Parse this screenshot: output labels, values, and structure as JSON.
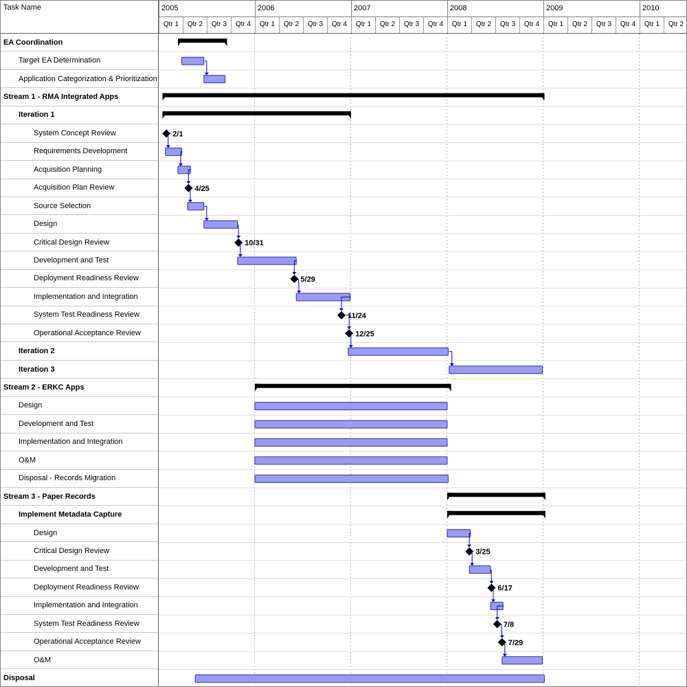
{
  "table": {
    "header": "Task Name"
  },
  "timeline": {
    "start_year": 2005,
    "years": [
      {
        "label": "2005",
        "quarters": [
          "Qtr 1",
          "Qtr 2",
          "Qtr 3",
          "Qtr 4"
        ]
      },
      {
        "label": "2006",
        "quarters": [
          "Qtr 1",
          "Qtr 2",
          "Qtr 3",
          "Qtr 4"
        ]
      },
      {
        "label": "2007",
        "quarters": [
          "Qtr 1",
          "Qtr 2",
          "Qtr 3",
          "Qtr 4"
        ]
      },
      {
        "label": "2008",
        "quarters": [
          "Qtr 1",
          "Qtr 2",
          "Qtr 3",
          "Qtr 4"
        ]
      },
      {
        "label": "2009",
        "quarters": [
          "Qtr 1",
          "Qtr 2",
          "Qtr 3",
          "Qtr 4"
        ]
      },
      {
        "label": "2010",
        "quarters": [
          "Qtr 1",
          "Qtr 2"
        ]
      }
    ]
  },
  "colors": {
    "bar_fill": "#9b9bf0",
    "bar_border": "#2e2eb8",
    "summary": "#000000",
    "milestone": "#000000",
    "link": "#0000cc",
    "grid": "#b4b4b4",
    "row_line": "#dcdcdc"
  },
  "chart_data": {
    "type": "gantt",
    "title": "Project schedule Gantt chart, 2005 Q1 - 2010 Q2",
    "time_axis": {
      "unit": "quarter",
      "range": [
        2005.0,
        2010.5
      ]
    },
    "tasks": [
      {
        "name": "EA Coordination",
        "level": 0,
        "bold": true,
        "type": "summary",
        "start": 2005.2,
        "end": 2005.71
      },
      {
        "name": "Target EA Determination",
        "level": 1,
        "bold": false,
        "type": "bar",
        "start": 2005.24,
        "end": 2005.47
      },
      {
        "name": "Application Categorization & Prioritization",
        "level": 1,
        "bold": false,
        "type": "bar",
        "start": 2005.47,
        "end": 2005.69
      },
      {
        "name": "Stream 1 - RMA Integrated Apps",
        "level": 0,
        "bold": true,
        "type": "summary",
        "start": 2005.04,
        "end": 2009.01
      },
      {
        "name": "Iteration 1",
        "level": 1,
        "bold": true,
        "type": "summary",
        "start": 2005.04,
        "end": 2007.0
      },
      {
        "name": "System Concept Review",
        "level": 2,
        "bold": false,
        "type": "milestone",
        "date": 2005.08,
        "date_label": "2/1"
      },
      {
        "name": "Requirements Development",
        "level": 2,
        "bold": false,
        "type": "bar",
        "start": 2005.07,
        "end": 2005.24
      },
      {
        "name": "Acquisition Planning",
        "level": 2,
        "bold": false,
        "type": "bar",
        "start": 2005.2,
        "end": 2005.33
      },
      {
        "name": "Acquisition Plan Review",
        "level": 2,
        "bold": false,
        "type": "milestone",
        "date": 2005.31,
        "date_label": "4/25"
      },
      {
        "name": "Source Selection",
        "level": 2,
        "bold": false,
        "type": "bar",
        "start": 2005.3,
        "end": 2005.47
      },
      {
        "name": "Design",
        "level": 2,
        "bold": false,
        "type": "bar",
        "start": 2005.47,
        "end": 2005.82
      },
      {
        "name": "Critical Design Review",
        "level": 2,
        "bold": false,
        "type": "milestone",
        "date": 2005.83,
        "date_label": "10/31"
      },
      {
        "name": "Development and Test",
        "level": 2,
        "bold": false,
        "type": "bar",
        "start": 2005.82,
        "end": 2006.43
      },
      {
        "name": "Deployment Readiness Review",
        "level": 2,
        "bold": false,
        "type": "milestone",
        "date": 2006.41,
        "date_label": "5/29"
      },
      {
        "name": "Implementation and Integration",
        "level": 2,
        "bold": false,
        "type": "bar",
        "start": 2006.43,
        "end": 2006.99
      },
      {
        "name": "System Test Readiness Review",
        "level": 2,
        "bold": false,
        "type": "milestone",
        "date": 2006.9,
        "date_label": "11/24"
      },
      {
        "name": "Operational Acceptance Review",
        "level": 2,
        "bold": false,
        "type": "milestone",
        "date": 2006.98,
        "date_label": "12/25"
      },
      {
        "name": "Iteration 2",
        "level": 1,
        "bold": true,
        "type": "bar",
        "start": 2006.97,
        "end": 2008.01
      },
      {
        "name": "Iteration 3",
        "level": 1,
        "bold": true,
        "type": "bar",
        "start": 2008.02,
        "end": 2008.99
      },
      {
        "name": "Stream 2 - ERKC Apps",
        "level": 0,
        "bold": true,
        "type": "summary",
        "start": 2006.0,
        "end": 2008.04
      },
      {
        "name": "Design",
        "level": 1,
        "bold": false,
        "type": "bar",
        "start": 2006.0,
        "end": 2008.0
      },
      {
        "name": "Development and Test",
        "level": 1,
        "bold": false,
        "type": "bar",
        "start": 2006.0,
        "end": 2008.0
      },
      {
        "name": "Implementation and Integration",
        "level": 1,
        "bold": false,
        "type": "bar",
        "start": 2006.0,
        "end": 2008.0
      },
      {
        "name": "O&M",
        "level": 1,
        "bold": false,
        "type": "bar",
        "start": 2006.0,
        "end": 2008.0
      },
      {
        "name": "Disposal - Records Migration",
        "level": 1,
        "bold": false,
        "type": "bar",
        "start": 2006.0,
        "end": 2008.01
      },
      {
        "name": "Stream 3 - Paper Records",
        "level": 0,
        "bold": true,
        "type": "summary",
        "start": 2008.0,
        "end": 2009.02
      },
      {
        "name": "Implement Metadata Capture",
        "level": 1,
        "bold": true,
        "type": "summary",
        "start": 2008.0,
        "end": 2009.02
      },
      {
        "name": "Design",
        "level": 2,
        "bold": false,
        "type": "bar",
        "start": 2008.0,
        "end": 2008.24
      },
      {
        "name": "Critical Design Review",
        "level": 2,
        "bold": false,
        "type": "milestone",
        "date": 2008.23,
        "date_label": "3/25"
      },
      {
        "name": "Development and Test",
        "level": 2,
        "bold": false,
        "type": "bar",
        "start": 2008.23,
        "end": 2008.45
      },
      {
        "name": "Deployment Readiness Review",
        "level": 2,
        "bold": false,
        "type": "milestone",
        "date": 2008.46,
        "date_label": "6/17"
      },
      {
        "name": "Implementation and Integration",
        "level": 2,
        "bold": false,
        "type": "bar",
        "start": 2008.45,
        "end": 2008.58
      },
      {
        "name": "System Test Readiness Review",
        "level": 2,
        "bold": false,
        "type": "milestone",
        "date": 2008.52,
        "date_label": "7/8"
      },
      {
        "name": "Operational Acceptance Review",
        "level": 2,
        "bold": false,
        "type": "milestone",
        "date": 2008.57,
        "date_label": "7/29"
      },
      {
        "name": "O&M",
        "level": 2,
        "bold": false,
        "type": "bar",
        "start": 2008.57,
        "end": 2008.99
      },
      {
        "name": "Disposal",
        "level": 0,
        "bold": true,
        "type": "bar",
        "start": 2005.38,
        "end": 2009.01
      }
    ],
    "links": [
      [
        1,
        2
      ],
      [
        5,
        6
      ],
      [
        6,
        7
      ],
      [
        7,
        8
      ],
      [
        8,
        9
      ],
      [
        9,
        10
      ],
      [
        10,
        11
      ],
      [
        11,
        12
      ],
      [
        12,
        13
      ],
      [
        13,
        14
      ],
      [
        14,
        15
      ],
      [
        15,
        16
      ],
      [
        16,
        17
      ],
      [
        17,
        18
      ],
      [
        27,
        28
      ],
      [
        28,
        29
      ],
      [
        29,
        30
      ],
      [
        30,
        31
      ],
      [
        31,
        32
      ],
      [
        32,
        33
      ],
      [
        33,
        34
      ]
    ]
  }
}
